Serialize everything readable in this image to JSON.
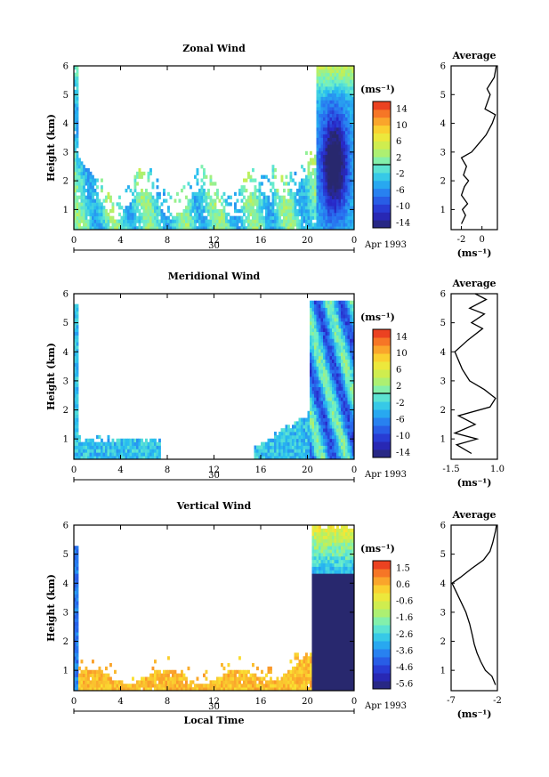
{
  "chart_data": [
    {
      "type": "heatmap",
      "title": "Zonal Wind",
      "ylabel": "Height (km)",
      "xticks": [
        "0",
        "4",
        "8",
        "12",
        "16",
        "20",
        "0"
      ],
      "yticks": [
        "1",
        "2",
        "3",
        "4",
        "5",
        "6"
      ],
      "day_label": "30",
      "date_label": "Apr 1993",
      "colorbar": {
        "unit": "(ms⁻¹)",
        "ticks": [
          "14",
          "10",
          "6",
          "2",
          "-2",
          "-6",
          "-10",
          "-14"
        ],
        "min": -14,
        "max": 14,
        "zero": 0
      },
      "average": {
        "title": "Average",
        "xticks": [
          "-2",
          "0"
        ],
        "xlim": [
          -3,
          1.5
        ],
        "unit": "(ms⁻¹)",
        "profile": [
          [
            -2.0,
            0.5
          ],
          [
            -1.6,
            0.8
          ],
          [
            -1.9,
            1.0
          ],
          [
            -1.4,
            1.2
          ],
          [
            -2.0,
            1.5
          ],
          [
            -1.7,
            1.8
          ],
          [
            -1.3,
            2.0
          ],
          [
            -1.8,
            2.2
          ],
          [
            -1.5,
            2.5
          ],
          [
            -2.0,
            2.8
          ],
          [
            -1.0,
            3.0
          ],
          [
            -0.3,
            3.3
          ],
          [
            0.4,
            3.6
          ],
          [
            1.0,
            4.0
          ],
          [
            1.3,
            4.3
          ],
          [
            0.3,
            4.5
          ],
          [
            0.8,
            5.0
          ],
          [
            0.5,
            5.2
          ],
          [
            1.2,
            5.6
          ],
          [
            1.4,
            6.0
          ]
        ]
      }
    },
    {
      "type": "heatmap",
      "title": "Meridional Wind",
      "ylabel": "Height (km)",
      "xticks": [
        "0",
        "4",
        "8",
        "12",
        "16",
        "20",
        "0"
      ],
      "yticks": [
        "1",
        "2",
        "3",
        "4",
        "5",
        "6"
      ],
      "day_label": "30",
      "date_label": "Apr 1993",
      "colorbar": {
        "unit": "(ms⁻¹)",
        "ticks": [
          "14",
          "10",
          "6",
          "2",
          "-2",
          "-6",
          "-10",
          "-14"
        ],
        "min": -14,
        "max": 14,
        "zero": 0
      },
      "average": {
        "title": "Average",
        "xticks": [
          "-1.5",
          "1.0"
        ],
        "xlim": [
          -1.5,
          1.0
        ],
        "unit": "(ms⁻¹)",
        "profile": [
          [
            -0.4,
            0.5
          ],
          [
            -1.2,
            0.8
          ],
          [
            -0.1,
            1.0
          ],
          [
            -1.3,
            1.2
          ],
          [
            -0.2,
            1.5
          ],
          [
            -1.1,
            1.8
          ],
          [
            0.6,
            2.1
          ],
          [
            0.9,
            2.4
          ],
          [
            0.3,
            2.7
          ],
          [
            -0.5,
            3.0
          ],
          [
            -0.9,
            3.4
          ],
          [
            -1.3,
            4.0
          ],
          [
            -0.6,
            4.4
          ],
          [
            0.2,
            4.8
          ],
          [
            -0.4,
            5.0
          ],
          [
            0.3,
            5.3
          ],
          [
            -0.5,
            5.5
          ],
          [
            0.4,
            5.8
          ],
          [
            -0.2,
            6.0
          ]
        ]
      }
    },
    {
      "type": "heatmap",
      "title": "Vertical Wind",
      "ylabel": "Height (km)",
      "xlabel": "Local Time",
      "xticks": [
        "0",
        "4",
        "8",
        "12",
        "16",
        "20",
        "0"
      ],
      "yticks": [
        "1",
        "2",
        "3",
        "4",
        "5",
        "6"
      ],
      "day_label": "30",
      "date_label": "Apr 1993",
      "colorbar": {
        "unit": "(ms⁻¹)",
        "ticks": [
          "1.5",
          "0.6",
          "-0.6",
          "-1.6",
          "-2.6",
          "-3.6",
          "-4.6",
          "-5.6"
        ],
        "min": -5.6,
        "max": 1.8,
        "zero": null
      },
      "average": {
        "title": "Average",
        "xticks": [
          "-7",
          "-2"
        ],
        "xlim": [
          -7,
          -2
        ],
        "unit": "(ms⁻¹)",
        "profile": [
          [
            -2.2,
            0.5
          ],
          [
            -2.6,
            0.8
          ],
          [
            -3.3,
            1.0
          ],
          [
            -3.8,
            1.3
          ],
          [
            -4.2,
            1.6
          ],
          [
            -4.5,
            1.9
          ],
          [
            -4.7,
            2.2
          ],
          [
            -5.0,
            2.6
          ],
          [
            -5.4,
            3.0
          ],
          [
            -6.0,
            3.4
          ],
          [
            -6.6,
            3.8
          ],
          [
            -6.9,
            4.0
          ],
          [
            -6.0,
            4.2
          ],
          [
            -4.8,
            4.5
          ],
          [
            -3.5,
            4.8
          ],
          [
            -2.8,
            5.1
          ],
          [
            -2.5,
            5.4
          ],
          [
            -2.2,
            5.8
          ],
          [
            -2.1,
            6.0
          ]
        ]
      }
    }
  ]
}
